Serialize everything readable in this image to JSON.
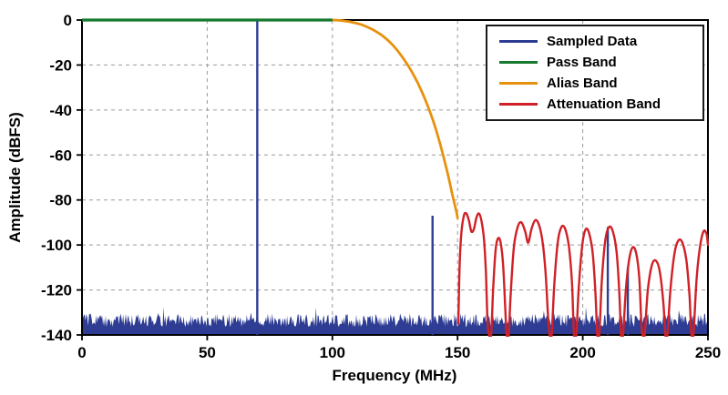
{
  "chart_data": {
    "type": "line",
    "title": "",
    "xlabel": "Frequency (MHz)",
    "ylabel": "Amplitude (dBFS)",
    "xlim": [
      0,
      250
    ],
    "ylim": [
      -140,
      0
    ],
    "x_ticks": [
      0,
      50,
      100,
      150,
      200,
      250
    ],
    "y_ticks": [
      0,
      -20,
      -40,
      -60,
      -80,
      -100,
      -120,
      -140
    ],
    "grid": true,
    "grid_color": "#9b9b9b",
    "legend_position": "top-right",
    "series": [
      {
        "name": "Sampled Data",
        "color": "#2e3d93",
        "kind": "spikes-and-noise-floor",
        "spikes": [
          {
            "x": 70,
            "y": 0
          },
          {
            "x": 140,
            "y": -87
          },
          {
            "x": 210,
            "y": -92
          },
          {
            "x": 218,
            "y": -110
          }
        ],
        "noise_floor": {
          "base": -136.5,
          "band": 6,
          "step": 0.35
        }
      },
      {
        "name": "Pass Band",
        "color": "#15792f",
        "kind": "line",
        "points": [
          [
            0,
            0
          ],
          [
            100,
            0
          ]
        ]
      },
      {
        "name": "Alias Band",
        "color": "#e6920e",
        "kind": "line",
        "points": [
          [
            100,
            0
          ],
          [
            104,
            -0.3
          ],
          [
            108,
            -1
          ],
          [
            112,
            -2.2
          ],
          [
            116,
            -4.2
          ],
          [
            120,
            -7
          ],
          [
            124,
            -11
          ],
          [
            128,
            -16.5
          ],
          [
            132,
            -23.5
          ],
          [
            136,
            -32.5
          ],
          [
            140,
            -44
          ],
          [
            143,
            -55
          ],
          [
            146,
            -68
          ],
          [
            148,
            -78
          ],
          [
            149.5,
            -85
          ],
          [
            150,
            -88
          ]
        ]
      },
      {
        "name": "Attenuation Band",
        "color": "#cf2127",
        "kind": "line",
        "points": [
          [
            150.3,
            -135
          ],
          [
            150.8,
            -110
          ],
          [
            151.5,
            -95
          ],
          [
            152.5,
            -87
          ],
          [
            153.5,
            -86
          ],
          [
            154.5,
            -89
          ],
          [
            155.5,
            -94
          ],
          [
            156.5,
            -93
          ],
          [
            157.5,
            -88
          ],
          [
            158.5,
            -86
          ],
          [
            159.5,
            -89
          ],
          [
            160.5,
            -97
          ],
          [
            161.3,
            -112
          ],
          [
            162,
            -135
          ],
          [
            162.6,
            -140
          ],
          [
            163.4,
            -140
          ],
          [
            164.2,
            -120
          ],
          [
            165.2,
            -102
          ],
          [
            166.2,
            -97
          ],
          [
            167.2,
            -99
          ],
          [
            168.2,
            -109
          ],
          [
            169,
            -127
          ],
          [
            169.6,
            -140
          ],
          [
            170.4,
            -140
          ],
          [
            171.2,
            -122
          ],
          [
            172.5,
            -101
          ],
          [
            174,
            -92
          ],
          [
            175.5,
            -90
          ],
          [
            177,
            -94
          ],
          [
            178.2,
            -99
          ],
          [
            179.5,
            -93
          ],
          [
            181,
            -89
          ],
          [
            182.5,
            -91
          ],
          [
            184,
            -99
          ],
          [
            185.2,
            -113
          ],
          [
            186.2,
            -133
          ],
          [
            186.8,
            -140
          ],
          [
            187.6,
            -140
          ],
          [
            188.6,
            -118
          ],
          [
            190,
            -99
          ],
          [
            191.5,
            -92
          ],
          [
            193,
            -93
          ],
          [
            194.5,
            -101
          ],
          [
            195.7,
            -117
          ],
          [
            196.5,
            -140
          ],
          [
            197.4,
            -140
          ],
          [
            198.4,
            -119
          ],
          [
            199.8,
            -100
          ],
          [
            201.2,
            -93
          ],
          [
            202.6,
            -95
          ],
          [
            204,
            -104
          ],
          [
            205.1,
            -122
          ],
          [
            205.8,
            -140
          ],
          [
            206.6,
            -140
          ],
          [
            207.6,
            -116
          ],
          [
            209,
            -98
          ],
          [
            210.5,
            -92
          ],
          [
            212,
            -94
          ],
          [
            213.5,
            -103
          ],
          [
            214.6,
            -121
          ],
          [
            215.3,
            -140
          ],
          [
            216.1,
            -140
          ],
          [
            217.2,
            -120
          ],
          [
            218.6,
            -106
          ],
          [
            220,
            -101
          ],
          [
            221.4,
            -104
          ],
          [
            222.6,
            -115
          ],
          [
            223.4,
            -135
          ],
          [
            223.9,
            -140
          ],
          [
            224.7,
            -140
          ],
          [
            226,
            -120
          ],
          [
            227.6,
            -109
          ],
          [
            229.2,
            -107
          ],
          [
            230.8,
            -112
          ],
          [
            232.2,
            -126
          ],
          [
            233,
            -140
          ],
          [
            233.8,
            -140
          ],
          [
            235,
            -120
          ],
          [
            236.6,
            -104
          ],
          [
            238.2,
            -98
          ],
          [
            239.8,
            -99
          ],
          [
            241.4,
            -107
          ],
          [
            242.6,
            -122
          ],
          [
            243.4,
            -140
          ],
          [
            244.2,
            -140
          ],
          [
            245.4,
            -116
          ],
          [
            246.8,
            -101
          ],
          [
            248.2,
            -94
          ],
          [
            249.4,
            -95
          ],
          [
            250,
            -100
          ]
        ]
      }
    ]
  }
}
